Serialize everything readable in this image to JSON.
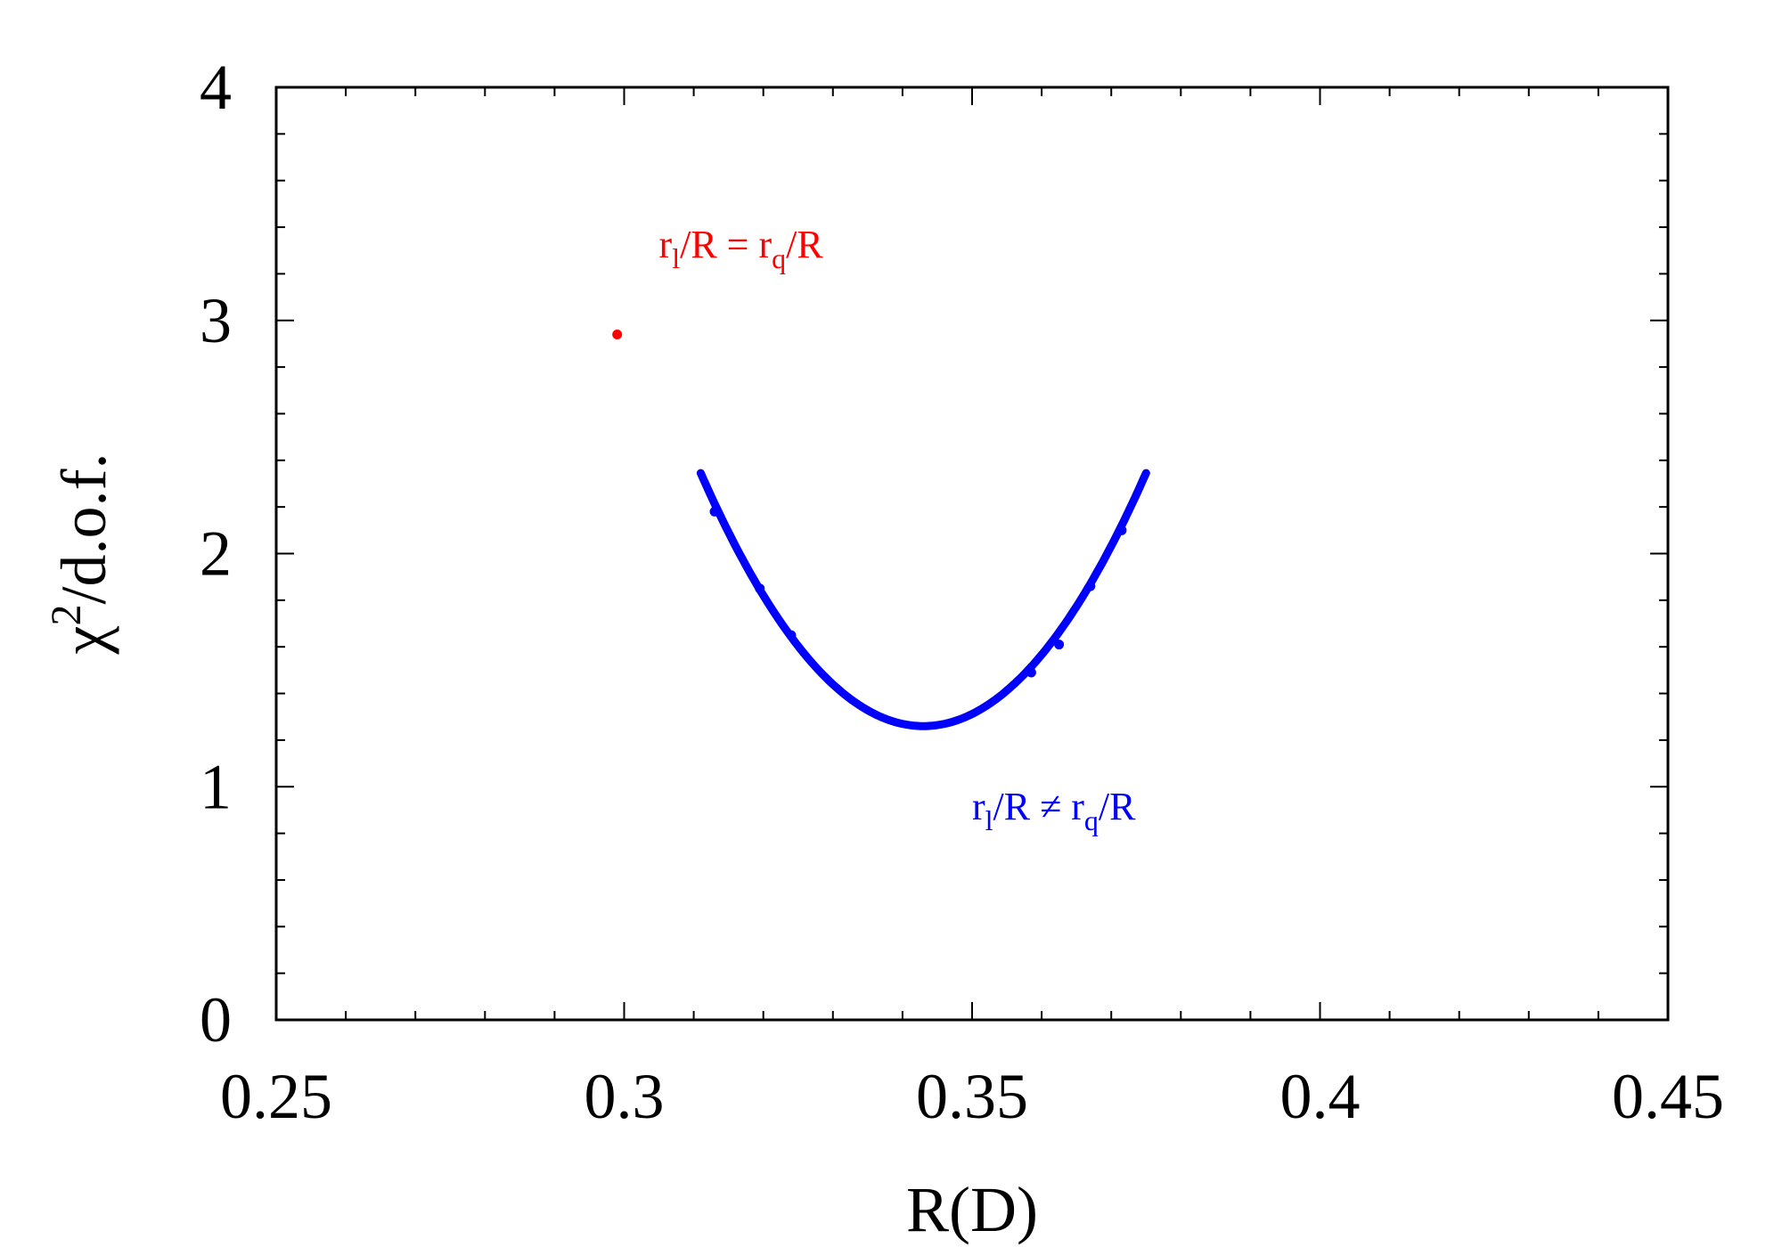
{
  "chart_data": {
    "type": "scatter",
    "xlabel": "R(D)",
    "ylabel": {
      "base": "χ",
      "sup": "2",
      "rest": "/d.o.f."
    },
    "xlim": [
      0.25,
      0.45
    ],
    "ylim": [
      0,
      4
    ],
    "x_ticks": [
      "0.25",
      "0.3",
      "0.35",
      "0.4",
      "0.45"
    ],
    "y_ticks": [
      "0",
      "1",
      "2",
      "3",
      "4"
    ],
    "grid": false,
    "colors": {
      "equal": "#ff0000",
      "unequal": "#0000ff"
    },
    "series": [
      {
        "key": "equal",
        "points": [
          [
            0.299,
            2.94
          ]
        ]
      },
      {
        "key": "unequal",
        "curve": {
          "x_min": 0.311,
          "x_max": 0.375,
          "x_at_min": 0.343,
          "y_min": 1.26,
          "curvature": 1060
        },
        "points": [
          [
            0.313,
            2.18
          ],
          [
            0.3195,
            1.85
          ],
          [
            0.324,
            1.65
          ],
          [
            0.3585,
            1.49
          ],
          [
            0.3625,
            1.61
          ],
          [
            0.367,
            1.86
          ],
          [
            0.3715,
            2.1
          ]
        ]
      }
    ],
    "annotations": [
      {
        "key": "equal",
        "x": 0.305,
        "y": 3.27,
        "parts": [
          [
            "r",
            ""
          ],
          [
            "l",
            "sub"
          ],
          [
            "/R = r",
            ""
          ],
          [
            "q",
            "sub"
          ],
          [
            "/R",
            ""
          ]
        ]
      },
      {
        "key": "unequal",
        "x": 0.35,
        "y": 0.86,
        "parts": [
          [
            "r",
            ""
          ],
          [
            "l",
            "sub"
          ],
          [
            "/R ≠ r",
            ""
          ],
          [
            "q",
            "sub"
          ],
          [
            "/R",
            ""
          ]
        ]
      }
    ]
  }
}
